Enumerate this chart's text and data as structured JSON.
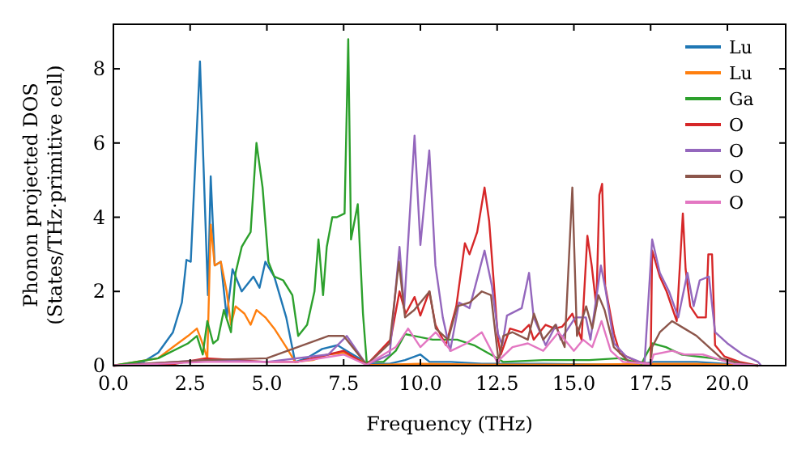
{
  "chart_data": {
    "type": "line",
    "xlabel": "Frequency (THz)",
    "ylabel": "Phonon projected DOS\n(States/THz·primitive cell)",
    "xlim": [
      0,
      21.9
    ],
    "ylim": [
      0,
      9.2
    ],
    "xticks": [
      {
        "value": 0,
        "label": "0.0"
      },
      {
        "value": 2.5,
        "label": "2.5"
      },
      {
        "value": 5,
        "label": "5.0"
      },
      {
        "value": 7.5,
        "label": "7.5"
      },
      {
        "value": 10,
        "label": "10.0"
      },
      {
        "value": 12.5,
        "label": "12.5"
      },
      {
        "value": 15,
        "label": "15.0"
      },
      {
        "value": 17.5,
        "label": "17.5"
      },
      {
        "value": 20,
        "label": "20.0"
      }
    ],
    "yticks": [
      0,
      2,
      4,
      6,
      8
    ],
    "grid": false,
    "legend": "top right",
    "marker": "none",
    "line_style": "solid",
    "series": [
      {
        "name": "Lu",
        "color": "#1f77b4",
        "x": [
          0,
          0.97,
          1.46,
          1.94,
          2.23,
          2.38,
          2.52,
          2.82,
          3.08,
          3.17,
          3.3,
          3.5,
          3.69,
          3.88,
          4.18,
          4.56,
          4.76,
          4.95,
          5.24,
          5.63,
          5.92,
          6.3,
          6.8,
          7.3,
          7.6,
          8.0,
          8.3,
          9.0,
          9.5,
          10.0,
          10.3,
          11,
          12,
          14,
          17,
          17.6,
          19,
          20.5,
          21
        ],
        "values": [
          0,
          0.1,
          0.35,
          0.9,
          1.7,
          2.85,
          2.8,
          8.2,
          1.9,
          5.1,
          2.7,
          2.8,
          1.3,
          2.6,
          2.0,
          2.4,
          2.1,
          2.8,
          2.4,
          1.3,
          0.1,
          0.2,
          0.45,
          0.55,
          0.4,
          0.2,
          0.05,
          0.05,
          0.15,
          0.3,
          0.1,
          0.1,
          0.05,
          0.05,
          0.02,
          0.1,
          0.1,
          0.02,
          0
        ]
      },
      {
        "name": "Lu",
        "color": "#ff7f0e",
        "x": [
          0,
          1.46,
          1.94,
          2.43,
          2.72,
          2.86,
          3.06,
          3.17,
          3.3,
          3.5,
          3.69,
          3.83,
          3.98,
          4.27,
          4.47,
          4.66,
          4.95,
          5.24,
          5.63,
          5.92,
          6.5,
          7.0,
          7.5,
          8.0,
          8.4,
          10,
          12,
          15,
          17.6,
          19,
          21
        ],
        "values": [
          0,
          0.2,
          0.5,
          0.8,
          1.0,
          0.7,
          0.2,
          3.8,
          2.7,
          2.8,
          2.0,
          1.1,
          1.6,
          1.4,
          1.1,
          1.5,
          1.3,
          1.0,
          0.5,
          0.1,
          0.15,
          0.3,
          0.35,
          0.15,
          0.02,
          0.05,
          0.03,
          0.03,
          0.05,
          0.05,
          0
        ]
      },
      {
        "name": "Ga",
        "color": "#2ca02c",
        "x": [
          0,
          1.46,
          2.43,
          2.72,
          2.91,
          3.06,
          3.25,
          3.4,
          3.6,
          3.83,
          3.98,
          4.18,
          4.32,
          4.47,
          4.66,
          4.86,
          5.05,
          5.24,
          5.53,
          5.83,
          6.02,
          6.31,
          6.55,
          6.68,
          6.83,
          6.95,
          7.13,
          7.28,
          7.53,
          7.65,
          7.74,
          7.96,
          8.13,
          8.25,
          8.8,
          9.2,
          9.5,
          10.4,
          11.2,
          11.75,
          12.5,
          12.7,
          14,
          15.5,
          16.5,
          17.2,
          17.55,
          18,
          18.5,
          19.5,
          20.5,
          21
        ],
        "values": [
          0,
          0.2,
          0.6,
          0.8,
          0.3,
          1.2,
          0.6,
          0.7,
          1.5,
          0.9,
          2.5,
          3.2,
          3.4,
          3.6,
          6.0,
          4.8,
          2.8,
          2.4,
          2.3,
          1.9,
          0.8,
          1.1,
          2.0,
          3.4,
          1.9,
          3.2,
          4.0,
          4.0,
          4.1,
          8.8,
          3.4,
          4.35,
          1.4,
          0.1,
          0.1,
          0.4,
          0.85,
          0.7,
          0.7,
          0.55,
          0.2,
          0.1,
          0.15,
          0.15,
          0.2,
          0.05,
          0.6,
          0.5,
          0.3,
          0.2,
          0.05,
          0
        ]
      },
      {
        "name": "O",
        "color": "#d62728",
        "x": [
          0,
          2,
          3,
          5,
          6,
          7,
          7.5,
          8.25,
          9.03,
          9.32,
          9.52,
          9.81,
          10.0,
          10.29,
          10.49,
          10.83,
          11.17,
          11.45,
          11.6,
          11.85,
          12.09,
          12.24,
          12.53,
          12.62,
          12.92,
          13.3,
          13.54,
          13.69,
          14.08,
          14.37,
          14.62,
          14.95,
          15.25,
          15.44,
          15.58,
          15.73,
          15.83,
          15.92,
          16.02,
          16.31,
          16.5,
          17.09,
          17.5,
          17.55,
          17.8,
          18.02,
          18.35,
          18.55,
          18.64,
          18.79,
          19.03,
          19.3,
          19.38,
          19.5,
          19.6,
          19.9,
          20.4,
          21
        ],
        "values": [
          0,
          0.05,
          0.2,
          0.1,
          0.1,
          0.3,
          0.4,
          0.02,
          0.7,
          2.0,
          1.4,
          1.85,
          1.35,
          2.0,
          1.1,
          0.55,
          1.6,
          3.3,
          3.0,
          3.6,
          4.8,
          3.9,
          0.7,
          0.3,
          1.0,
          0.9,
          1.1,
          0.7,
          1.1,
          1.0,
          1.05,
          1.4,
          0.7,
          3.5,
          2.7,
          1.6,
          4.6,
          4.9,
          2.15,
          0.85,
          0.33,
          0.1,
          0.05,
          3.1,
          2.4,
          2.0,
          1.2,
          4.1,
          2.6,
          1.6,
          1.3,
          1.3,
          3.0,
          3.0,
          0.55,
          0.25,
          0.1,
          0
        ]
      },
      {
        "name": "O",
        "color": "#9467bd",
        "x": [
          0,
          3,
          5,
          7,
          7.6,
          8.25,
          9.0,
          9.32,
          9.47,
          9.81,
          10.0,
          10.29,
          10.49,
          10.73,
          10.97,
          11.26,
          11.6,
          12.09,
          12.33,
          12.53,
          12.67,
          12.82,
          13.3,
          13.54,
          13.69,
          14.08,
          14.42,
          14.57,
          15.05,
          15.39,
          15.54,
          15.88,
          16.02,
          16.31,
          16.7,
          17.3,
          17.55,
          17.8,
          18.1,
          18.4,
          18.7,
          18.9,
          19.1,
          19.4,
          19.6,
          20.0,
          20.5,
          21.0,
          21.1
        ],
        "values": [
          0,
          0.15,
          0.1,
          0.3,
          0.8,
          0.02,
          0.3,
          3.2,
          1.55,
          6.2,
          3.25,
          5.8,
          2.7,
          1.3,
          0.4,
          1.7,
          1.55,
          3.1,
          2.15,
          0.85,
          0.55,
          1.35,
          1.55,
          2.5,
          1.3,
          0.55,
          1.1,
          0.7,
          1.3,
          1.3,
          0.7,
          2.7,
          2.1,
          0.6,
          0.25,
          0.05,
          3.4,
          2.5,
          2.0,
          1.3,
          2.5,
          1.6,
          2.3,
          2.4,
          0.9,
          0.6,
          0.3,
          0.1,
          0
        ]
      },
      {
        "name": "O",
        "color": "#8c564b",
        "x": [
          0,
          3,
          5,
          7,
          7.5,
          8.25,
          9.0,
          9.3,
          9.5,
          9.8,
          10.3,
          10.5,
          10.9,
          11.2,
          11.6,
          12.0,
          12.3,
          12.55,
          12.7,
          13,
          13.5,
          13.7,
          14.0,
          14.4,
          14.7,
          14.95,
          15.1,
          15.4,
          15.6,
          15.8,
          16.0,
          16.3,
          16.8,
          17.5,
          17.55,
          17.8,
          18.2,
          18.6,
          19.0,
          19.4,
          19.8,
          20.5,
          21
        ],
        "values": [
          0,
          0.15,
          0.2,
          0.8,
          0.8,
          0.02,
          0.6,
          2.8,
          1.3,
          1.5,
          2.0,
          1.0,
          0.7,
          1.6,
          1.7,
          2.0,
          1.9,
          0.1,
          0.8,
          0.9,
          0.7,
          1.4,
          0.7,
          1.1,
          0.5,
          4.8,
          0.8,
          1.6,
          1.0,
          1.9,
          1.5,
          0.5,
          0.1,
          0.05,
          0.5,
          0.9,
          1.2,
          1.0,
          0.8,
          0.5,
          0.2,
          0.05,
          0
        ]
      },
      {
        "name": "O",
        "color": "#e377c2",
        "x": [
          0,
          3,
          6,
          7.5,
          8.25,
          9.2,
          9.6,
          10,
          10.5,
          11,
          11.5,
          12,
          12.5,
          13.0,
          13.5,
          14.0,
          14.5,
          15.0,
          15.3,
          15.6,
          15.9,
          16.2,
          16.6,
          17.5,
          17.6,
          18.2,
          18.6,
          19.2,
          19.6,
          20.2,
          21
        ],
        "values": [
          0,
          0.1,
          0.1,
          0.3,
          0.02,
          0.5,
          1.0,
          0.5,
          0.9,
          0.4,
          0.6,
          0.9,
          0.1,
          0.5,
          0.6,
          0.4,
          0.9,
          0.4,
          0.7,
          0.5,
          1.2,
          0.4,
          0.1,
          0.05,
          0.3,
          0.4,
          0.3,
          0.3,
          0.2,
          0.05,
          0
        ]
      }
    ]
  }
}
